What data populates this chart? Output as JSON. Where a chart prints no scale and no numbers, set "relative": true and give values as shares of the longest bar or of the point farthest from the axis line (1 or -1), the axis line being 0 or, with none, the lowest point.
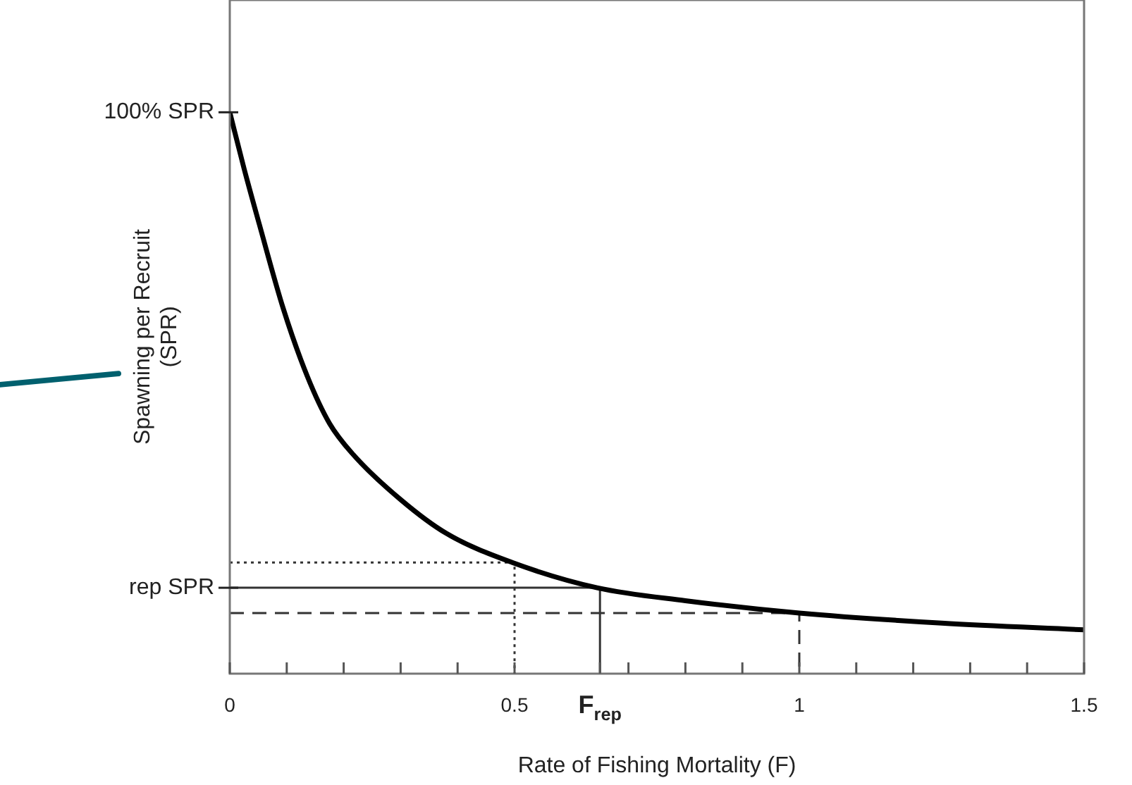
{
  "chart_data": {
    "type": "line",
    "xlabel": "Rate of Fishing Mortality (F)",
    "ylabel": "Spawning per Recruit\n(SPR)",
    "relative": true,
    "grid": false,
    "legend": false,
    "marker": "none",
    "xlim": [
      0,
      1.5
    ],
    "xticks": [
      0,
      {
        "value": 0.1,
        "label": null
      },
      {
        "value": 0.2,
        "label": null
      },
      {
        "value": 0.3,
        "label": null
      },
      {
        "value": 0.4,
        "label": null
      },
      0.5,
      {
        "value": 0.65,
        "label": "F$_{rep}$"
      },
      {
        "value": 0.7,
        "label": null
      },
      {
        "value": 0.8,
        "label": null
      },
      {
        "value": 0.9,
        "label": null
      },
      1,
      {
        "value": 1.1,
        "label": null
      },
      {
        "value": 1.2,
        "label": null
      },
      {
        "value": 1.3,
        "label": null
      },
      {
        "value": 1.4,
        "label": null
      },
      1.5
    ],
    "annotations": [
      {
        "text": "100% SPR",
        "x": 0,
        "y": 1
      },
      {
        "text": "rep SPR",
        "x": 0,
        "y": 0.153
      }
    ],
    "series": [
      {
        "color": "#000000",
        "line_style": "solid",
        "x": [
          0,
          0.025,
          0.052,
          0.094,
          0.136,
          0.175,
          0.217,
          0.3,
          0.38,
          0.496,
          0.645,
          0.8,
          1,
          1.25,
          1.5
        ],
        "values": [
          1,
          0.9,
          0.8,
          0.65,
          0.53,
          0.446,
          0.39,
          0.31,
          0.25,
          0.198,
          0.153,
          0.13,
          0.108,
          0.09,
          0.078
        ]
      },
      {
        "color": "#333333",
        "line_style": "dotted",
        "x": [
          0,
          0.5,
          0.5
        ],
        "values": [
          0.198,
          0.198,
          0
        ]
      },
      {
        "color": "#333333",
        "line_style": "solid",
        "x": [
          0,
          0.65,
          0.65
        ],
        "values": [
          0.153,
          0.153,
          0
        ]
      },
      {
        "color": "#333333",
        "line_style": "dashed",
        "x": [
          0,
          1,
          1
        ],
        "values": [
          0.108,
          0.108,
          0
        ]
      }
    ]
  }
}
